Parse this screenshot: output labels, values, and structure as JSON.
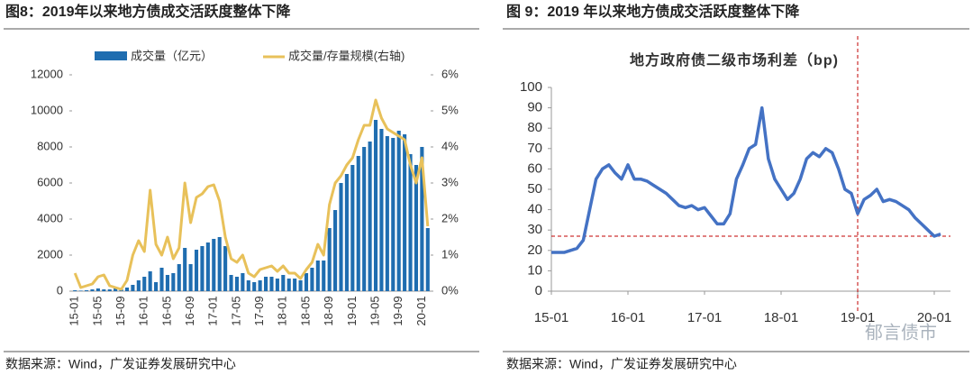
{
  "chart_data": [
    {
      "type": "bar",
      "panel_title": "图8：2019年以来地方债成交活跃度整体下降",
      "source": "数据来源：Wind，广发证券发展研究中心",
      "categories": [
        "15-01",
        null,
        null,
        null,
        "15-05",
        null,
        null,
        null,
        "15-09",
        null,
        null,
        null,
        "16-01",
        null,
        null,
        null,
        "16-05",
        null,
        null,
        null,
        "16-09",
        null,
        null,
        null,
        "17-01",
        null,
        null,
        null,
        "17-05",
        null,
        null,
        null,
        "17-09",
        null,
        null,
        null,
        "18-01",
        null,
        null,
        null,
        "18-05",
        null,
        null,
        null,
        "18-09",
        null,
        null,
        null,
        "19-01",
        null,
        null,
        null,
        "19-05",
        null,
        null,
        null,
        "19-09",
        null,
        null,
        null,
        "20-01",
        null
      ],
      "series": [
        {
          "name": "成交量（亿元）",
          "color": "#1f6db0",
          "values": [
            50,
            30,
            50,
            100,
            150,
            100,
            100,
            150,
            100,
            200,
            350,
            600,
            800,
            1100,
            500,
            1300,
            900,
            1000,
            1500,
            2400,
            1500,
            2300,
            2500,
            2700,
            2900,
            3000,
            2500,
            900,
            800,
            1000,
            600,
            500,
            600,
            800,
            800,
            700,
            900,
            700,
            700,
            600,
            1000,
            1300,
            1700,
            1700,
            3500,
            4500,
            6000,
            6500,
            7000,
            7500,
            8000,
            8300,
            9500,
            9000,
            8600,
            8500,
            8900,
            8700,
            7600,
            7000,
            8000,
            3500
          ]
        },
        {
          "name": "成交量/存量规模(右轴)",
          "color": "#e8c15a",
          "type": "line",
          "axis": "y2",
          "values": [
            0.5,
            0.1,
            0.15,
            0.2,
            0.4,
            0.45,
            0.15,
            0.1,
            0.05,
            0.3,
            1.0,
            1.4,
            1.1,
            2.8,
            1.3,
            1.0,
            1.5,
            0.9,
            1.2,
            3.0,
            1.9,
            2.6,
            2.7,
            2.9,
            2.95,
            2.5,
            1.5,
            0.9,
            0.8,
            1.0,
            0.5,
            0.4,
            0.6,
            0.65,
            0.7,
            0.55,
            0.7,
            0.5,
            0.5,
            0.35,
            0.6,
            0.8,
            1.3,
            1.0,
            2.4,
            3.0,
            3.2,
            3.5,
            3.7,
            4.2,
            4.6,
            4.6,
            5.3,
            4.8,
            4.5,
            4.4,
            4.3,
            4.2,
            3.5,
            3.0,
            3.7,
            1.8
          ]
        }
      ],
      "ylim": [
        0,
        12000
      ],
      "yticks": [
        0,
        2000,
        4000,
        6000,
        8000,
        10000,
        12000
      ],
      "y2lim": [
        0,
        6
      ],
      "y2ticks": [
        {
          "value": 0,
          "label": "0%"
        },
        {
          "value": 1,
          "label": "1%"
        },
        {
          "value": 2,
          "label": "2%"
        },
        {
          "value": 3,
          "label": "3%"
        },
        {
          "value": 4,
          "label": "4%"
        },
        {
          "value": 5,
          "label": "5%"
        },
        {
          "value": 6,
          "label": "6%"
        }
      ],
      "legend": "top"
    },
    {
      "type": "line",
      "panel_title": "图 9：2019 年以来地方债成交活跃度整体下降",
      "source": "数据来源：Wind，广发证券发展研究中心",
      "title": "地方政府债二级市场利差（bp)",
      "watermark": "郁言债市",
      "categories": [
        "15-01",
        null,
        null,
        null,
        null,
        null,
        null,
        null,
        null,
        null,
        null,
        null,
        "16-01",
        null,
        null,
        null,
        null,
        null,
        null,
        null,
        null,
        null,
        null,
        null,
        "17-01",
        null,
        null,
        null,
        null,
        null,
        null,
        null,
        null,
        null,
        null,
        null,
        "18-01",
        null,
        null,
        null,
        null,
        null,
        null,
        null,
        null,
        null,
        null,
        null,
        "19-01",
        null,
        null,
        null,
        null,
        null,
        null,
        null,
        null,
        null,
        null,
        null,
        "20-01",
        null
      ],
      "series": [
        {
          "name": "利差",
          "color": "#4472c4",
          "values": [
            19,
            19,
            19,
            20,
            21,
            25,
            40,
            55,
            60,
            62,
            58,
            55,
            62,
            55,
            55,
            54,
            52,
            50,
            48,
            45,
            42,
            41,
            42,
            40,
            41,
            37,
            33,
            33,
            38,
            55,
            62,
            70,
            72,
            90,
            65,
            55,
            50,
            45,
            48,
            55,
            65,
            68,
            66,
            70,
            68,
            60,
            50,
            48,
            38,
            45,
            47,
            50,
            44,
            45,
            44,
            42,
            40,
            36,
            33,
            30,
            27,
            28
          ]
        }
      ],
      "ylim": [
        0,
        100
      ],
      "yticks": [
        0,
        10,
        20,
        30,
        40,
        50,
        60,
        70,
        80,
        90,
        100
      ],
      "hline": 27,
      "vline": "19-01",
      "ref_color": "#c00000"
    }
  ]
}
